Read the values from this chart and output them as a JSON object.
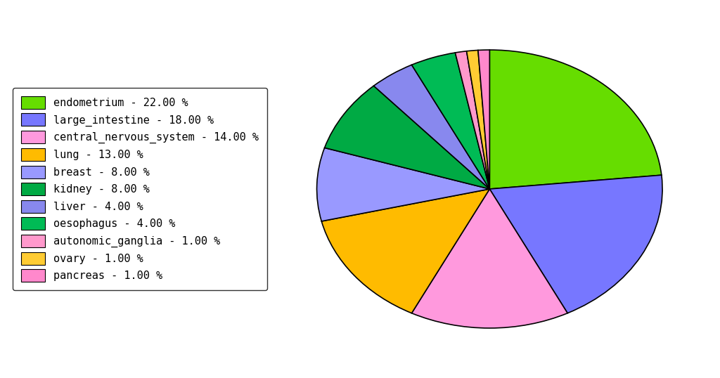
{
  "labels": [
    "endometrium",
    "large_intestine",
    "central_nervous_system",
    "lung",
    "breast",
    "kidney",
    "liver",
    "oesophagus",
    "autonomic_ganglia",
    "ovary",
    "pancreas"
  ],
  "values": [
    22.0,
    18.0,
    14.0,
    13.0,
    8.0,
    8.0,
    4.0,
    4.0,
    1.0,
    1.0,
    1.0
  ],
  "colors": [
    "#66dd00",
    "#7777ff",
    "#ff99dd",
    "#ffbb00",
    "#9999ff",
    "#00aa44",
    "#8888ee",
    "#00bb55",
    "#ff99cc",
    "#ffcc33",
    "#ff88cc"
  ],
  "legend_labels": [
    "endometrium - 22.00 %",
    "large_intestine - 18.00 %",
    "central_nervous_system - 14.00 %",
    "lung - 13.00 %",
    "breast - 8.00 %",
    "kidney - 8.00 %",
    "liver - 4.00 %",
    "oesophagus - 4.00 %",
    "autonomic_ganglia - 1.00 %",
    "ovary - 1.00 %",
    "pancreas - 1.00 %"
  ],
  "background_color": "#ffffff",
  "startangle": 90,
  "figsize": [
    10.24,
    5.38
  ],
  "dpi": 100
}
